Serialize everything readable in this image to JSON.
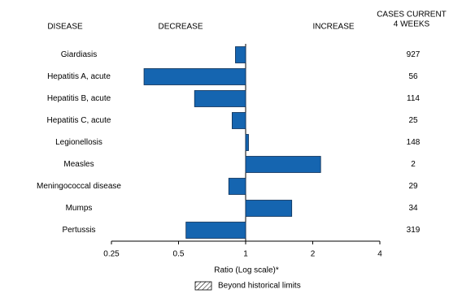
{
  "chart_data": {
    "type": "bar",
    "orientation": "horizontal",
    "headers": {
      "disease": "DISEASE",
      "decrease": "DECREASE",
      "increase": "INCREASE",
      "cases": [
        "CASES CURRENT",
        "4 WEEKS"
      ]
    },
    "categories": [
      "Giardiasis",
      "Hepatitis A, acute",
      "Hepatitis B, acute",
      "Hepatitis C, acute",
      "Legionellosis",
      "Measles",
      "Meningococcal disease",
      "Mumps",
      "Pertussis"
    ],
    "values": [
      0.9,
      0.35,
      0.59,
      0.87,
      1.03,
      2.17,
      0.84,
      1.61,
      0.54
    ],
    "cases_current_4_weeks": [
      927,
      56,
      114,
      25,
      148,
      2,
      29,
      34,
      319
    ],
    "color": "#1565b0",
    "xscale": "log",
    "xlim": [
      0.25,
      4
    ],
    "xticks": [
      0.25,
      0.5,
      1,
      2,
      4
    ],
    "xlabel": "Ratio (Log scale)*",
    "legend_label": "Beyond historical limits"
  }
}
